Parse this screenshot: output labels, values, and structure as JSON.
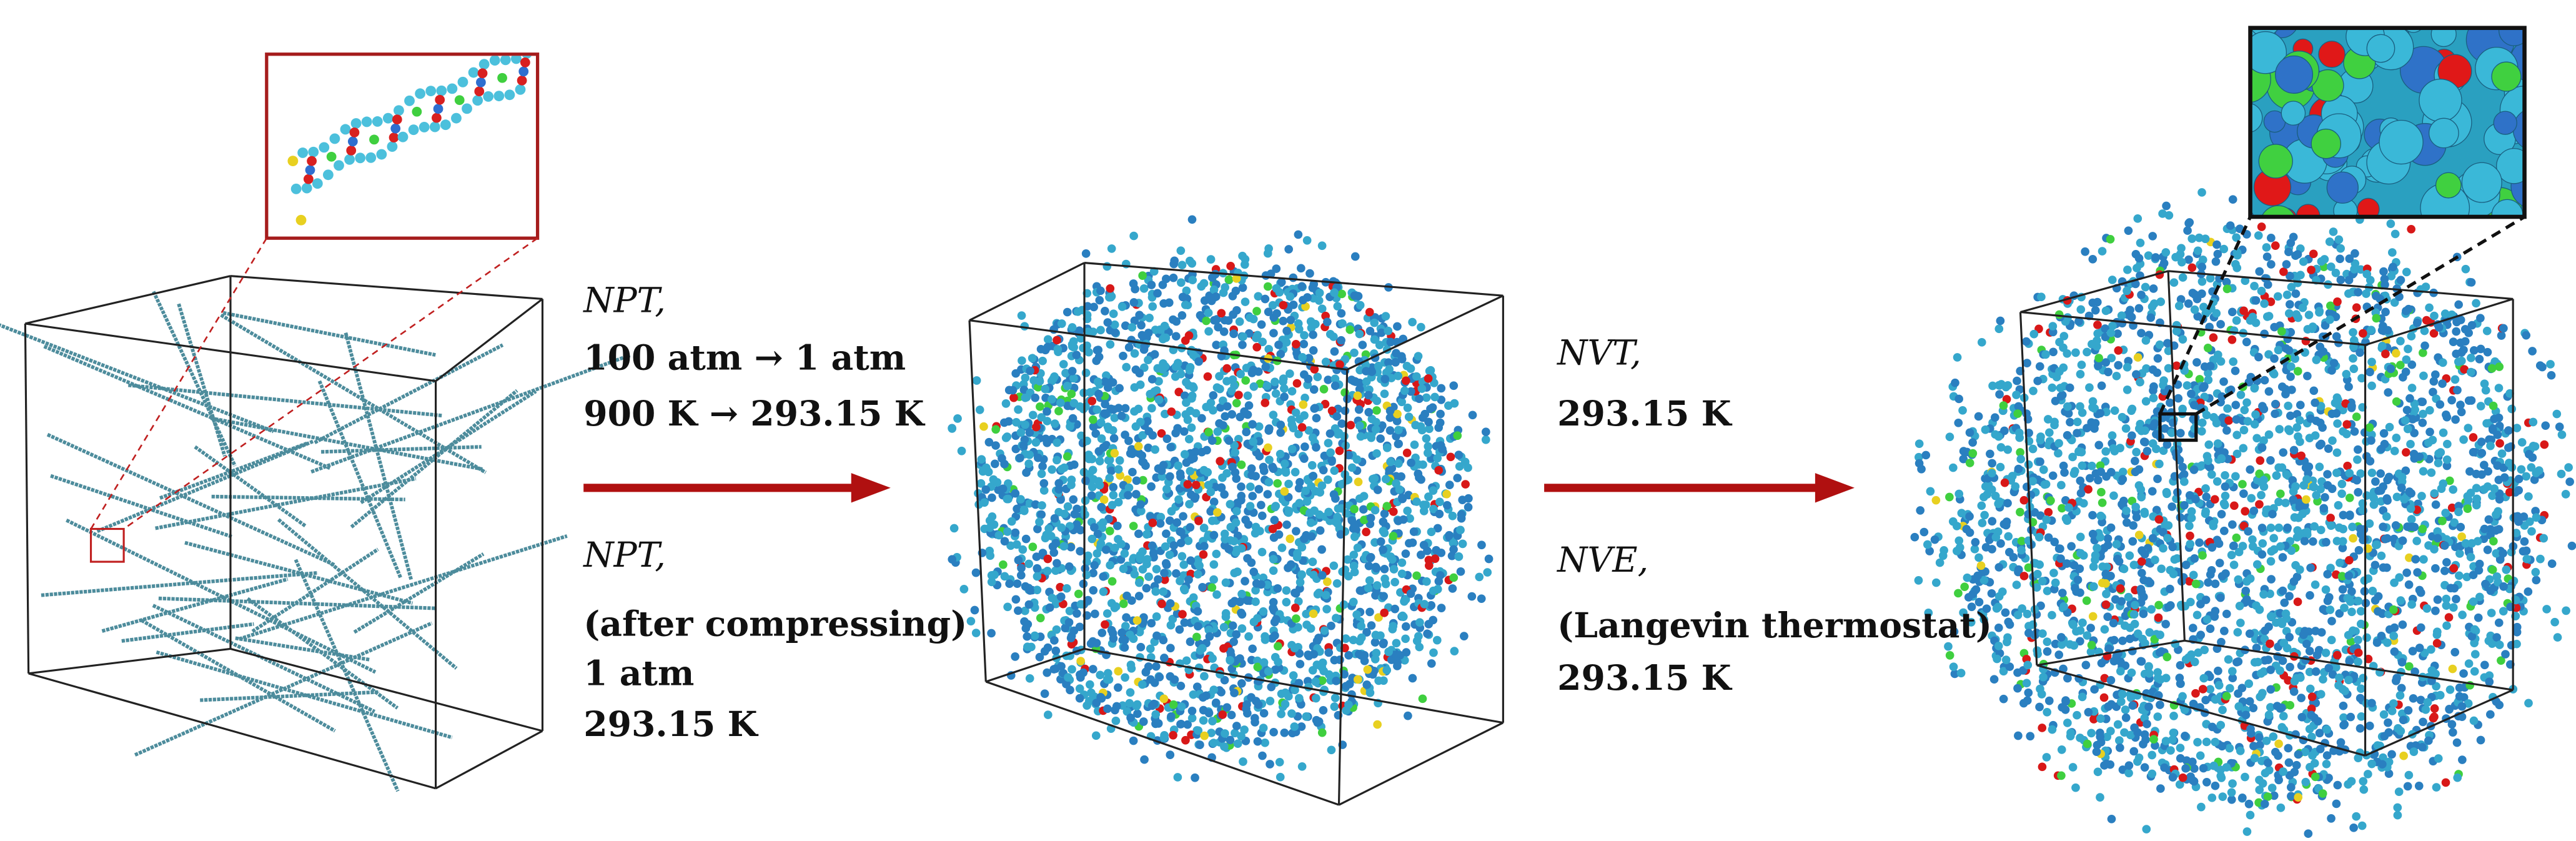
{
  "transitions": [
    {
      "top": {
        "ensemble": "NPT,",
        "lines": [
          "100 atm → 1 atm",
          "900 K → 293.15 K"
        ]
      },
      "bottom": {
        "ensemble": "NPT,",
        "lines": [
          "(after compressing)",
          "1 atm",
          "293.15 K"
        ]
      }
    },
    {
      "top": {
        "ensemble": "NVT,",
        "lines": [
          "293.15 K"
        ]
      },
      "bottom": {
        "ensemble": "NVE,",
        "lines": [
          "(Langevin thermostat)",
          "293.15 K"
        ]
      }
    }
  ]
}
